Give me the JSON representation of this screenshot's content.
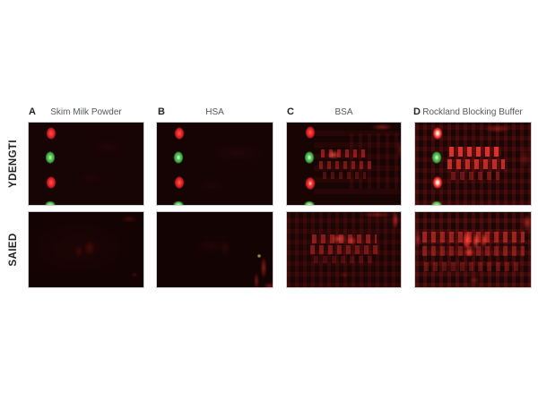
{
  "figure": {
    "panels": [
      {
        "letter": "A",
        "title": "Skim Milk Powder"
      },
      {
        "letter": "B",
        "title": "HSA"
      },
      {
        "letter": "C",
        "title": "BSA"
      },
      {
        "letter": "D",
        "title": "Rockland Blocking Buffer"
      }
    ],
    "rows": [
      {
        "label": "YDENGTI"
      },
      {
        "label": "SAIED"
      }
    ],
    "colors": {
      "marker_spot_red": "#ee2127",
      "marker_spot_green": "#4fbc50",
      "signal_red": "#e8232b",
      "saturated_spot_center": "#ffffff",
      "blot_background": "#170404",
      "panel_letter_text": "#231f20",
      "panel_title_text": "#58595b",
      "row_label_text": "#231f20",
      "panel_border": "#cbccce",
      "page_background": "#ffffff"
    }
  }
}
